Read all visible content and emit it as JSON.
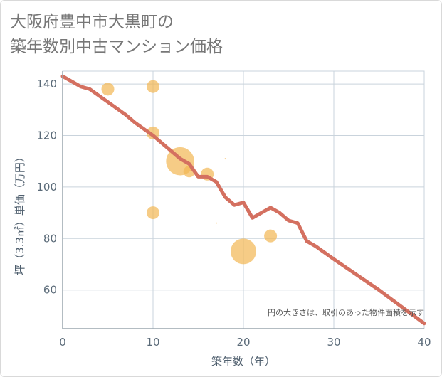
{
  "title_lines": [
    "大阪府豊中市大黒町の",
    "築年数別中古マンション価格"
  ],
  "chart_data": {
    "type": "scatter",
    "title": "大阪府豊中市大黒町の築年数別中古マンション価格",
    "xlabel": "築年数（年）",
    "ylabel": "坪（3.3㎡）単価（万円）",
    "xlim": [
      0,
      40
    ],
    "ylim": [
      45,
      145
    ],
    "xticks": [
      0,
      10,
      20,
      30,
      40
    ],
    "yticks": [
      60,
      80,
      100,
      120,
      140
    ],
    "grid": true,
    "note": "円の大きさは、取引のあった物件面積を示す",
    "points": [
      {
        "x": 5,
        "y": 138,
        "size": 1
      },
      {
        "x": 10,
        "y": 139,
        "size": 1
      },
      {
        "x": 10,
        "y": 121,
        "size": 1
      },
      {
        "x": 10,
        "y": 90,
        "size": 1
      },
      {
        "x": 13,
        "y": 110,
        "size": 2.2
      },
      {
        "x": 14,
        "y": 106,
        "size": 0.9
      },
      {
        "x": 16,
        "y": 105,
        "size": 1
      },
      {
        "x": 17,
        "y": 86,
        "size": 0.1
      },
      {
        "x": 18,
        "y": 111,
        "size": 0.1
      },
      {
        "x": 20,
        "y": 75,
        "size": 2
      },
      {
        "x": 23,
        "y": 81,
        "size": 1
      }
    ],
    "trend_line": {
      "x": [
        0,
        2,
        3,
        5,
        7,
        8,
        10,
        11,
        12,
        13,
        14,
        15,
        16,
        17,
        18,
        19,
        20,
        21,
        22,
        23,
        24,
        25,
        26,
        27,
        28,
        30,
        35,
        40
      ],
      "y": [
        143,
        139,
        138,
        133,
        128,
        125,
        120,
        117,
        114,
        111,
        109,
        104,
        104,
        102,
        96,
        93,
        94,
        88,
        90,
        92,
        90,
        87,
        86,
        79,
        77,
        72,
        60,
        47
      ]
    },
    "colors": {
      "bubble": "#f2b653",
      "line": "#d47060",
      "grid": "#c9d3dc",
      "axis": "#9aa5ae"
    }
  }
}
